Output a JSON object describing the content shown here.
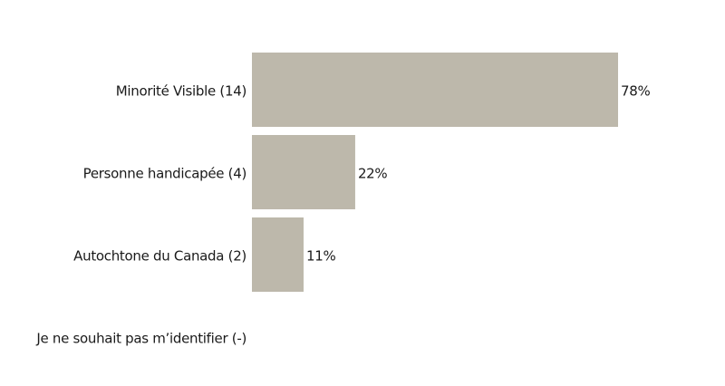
{
  "chart_data": {
    "type": "bar",
    "orientation": "horizontal",
    "categories": [
      "Minorité Visible (14)",
      "Personne handicapée (4)",
      "Autochtone du Canada (2)",
      "Je ne souhait pas m’identifier (-)"
    ],
    "values": [
      78,
      22,
      11,
      null
    ],
    "value_labels": [
      "78%",
      "22%",
      "11%",
      null
    ],
    "color": "#bdb8ab"
  }
}
